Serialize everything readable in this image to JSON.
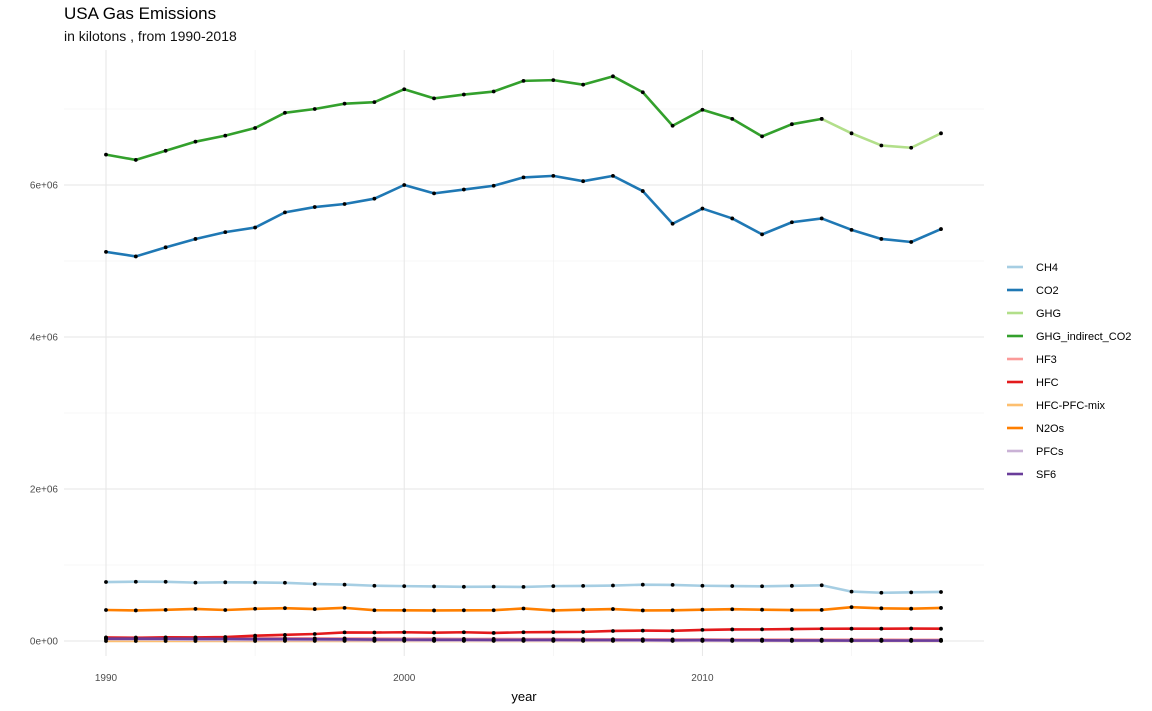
{
  "chart_data": {
    "type": "line",
    "title": "USA Gas Emissions",
    "subtitle": "in kilotons , from 1990-2018",
    "xlabel": "year",
    "ylabel": "",
    "xlim": [
      1990,
      2018
    ],
    "ylim": [
      0,
      7500000
    ],
    "x_ticks": [
      {
        "value": 1990,
        "label": "1990"
      },
      {
        "value": 2000,
        "label": "2000"
      },
      {
        "value": 2010,
        "label": "2010"
      }
    ],
    "y_ticks": [
      {
        "value": 0,
        "label": "0e+00"
      },
      {
        "value": 2000000,
        "label": "2e+06"
      },
      {
        "value": 4000000,
        "label": "4e+06"
      },
      {
        "value": 6000000,
        "label": "6e+06"
      }
    ],
    "grid": true,
    "legend_position": "right",
    "point_color": "#000000",
    "series": [
      {
        "name": "CH4",
        "color": "#a6cee3",
        "x": [
          1990,
          1991,
          1992,
          1993,
          1994,
          1995,
          1996,
          1997,
          1998,
          1999,
          2000,
          2001,
          2002,
          2003,
          2004,
          2005,
          2006,
          2007,
          2008,
          2009,
          2010,
          2011,
          2012,
          2013,
          2014,
          2015,
          2016,
          2017,
          2018
        ],
        "values": [
          776000,
          780000,
          779000,
          768000,
          772000,
          770000,
          766000,
          750000,
          742000,
          727000,
          722000,
          718000,
          713000,
          715000,
          712000,
          722000,
          725000,
          730000,
          741000,
          738000,
          727000,
          723000,
          720000,
          726000,
          733000,
          650000,
          635000,
          640000,
          645000
        ]
      },
      {
        "name": "CO2",
        "color": "#1f78b4",
        "x": [
          1990,
          1991,
          1992,
          1993,
          1994,
          1995,
          1996,
          1997,
          1998,
          1999,
          2000,
          2001,
          2002,
          2003,
          2004,
          2005,
          2006,
          2007,
          2008,
          2009,
          2010,
          2011,
          2012,
          2013,
          2014,
          2015,
          2016,
          2017,
          2018
        ],
        "values": [
          5120000,
          5060000,
          5180000,
          5290000,
          5380000,
          5440000,
          5640000,
          5710000,
          5750000,
          5820000,
          6000000,
          5890000,
          5940000,
          5990000,
          6100000,
          6120000,
          6050000,
          6120000,
          5920000,
          5490000,
          5690000,
          5560000,
          5350000,
          5510000,
          5560000,
          5410000,
          5290000,
          5250000,
          5420000
        ]
      },
      {
        "name": "GHG",
        "color": "#b2df8a",
        "x": [
          2014,
          2015,
          2016,
          2017,
          2018
        ],
        "values": [
          6870000,
          6680000,
          6520000,
          6490000,
          6680000
        ]
      },
      {
        "name": "GHG_indirect_CO2",
        "color": "#33a02c",
        "x": [
          1990,
          1991,
          1992,
          1993,
          1994,
          1995,
          1996,
          1997,
          1998,
          1999,
          2000,
          2001,
          2002,
          2003,
          2004,
          2005,
          2006,
          2007,
          2008,
          2009,
          2010,
          2011,
          2012,
          2013,
          2014
        ],
        "values": [
          6400000,
          6330000,
          6450000,
          6570000,
          6650000,
          6750000,
          6950000,
          7000000,
          7070000,
          7090000,
          7260000,
          7140000,
          7190000,
          7230000,
          7370000,
          7380000,
          7320000,
          7430000,
          7220000,
          6780000,
          6990000,
          6870000,
          6640000,
          6800000,
          6870000
        ]
      },
      {
        "name": "HF3",
        "color": "#fb9a99",
        "x": [
          1990,
          1991,
          1992,
          1993,
          1994,
          1995,
          1996,
          1997,
          1998,
          1999,
          2000,
          2001,
          2002,
          2003,
          2004,
          2005,
          2006,
          2007,
          2008,
          2009,
          2010,
          2011,
          2012,
          2013,
          2014,
          2015,
          2016,
          2017,
          2018
        ],
        "values": [
          46000,
          45000,
          43000,
          42000,
          40000,
          38000,
          37000,
          35000,
          34000,
          33000,
          31000,
          30000,
          28000,
          27000,
          26000,
          25000,
          24000,
          23000,
          22000,
          21000,
          20000,
          19500,
          19000,
          18500,
          18000,
          17500,
          17000,
          16500,
          16000
        ]
      },
      {
        "name": "HFC",
        "color": "#e31a1c",
        "x": [
          1990,
          1991,
          1992,
          1993,
          1994,
          1995,
          1996,
          1997,
          1998,
          1999,
          2000,
          2001,
          2002,
          2003,
          2004,
          2005,
          2006,
          2007,
          2008,
          2009,
          2010,
          2011,
          2012,
          2013,
          2014,
          2015,
          2016,
          2017,
          2018
        ],
        "values": [
          46000,
          40000,
          48000,
          47000,
          52000,
          70000,
          81000,
          92000,
          113000,
          111000,
          115000,
          110000,
          115000,
          106000,
          115000,
          117000,
          120000,
          132000,
          137000,
          134000,
          146000,
          152000,
          153000,
          157000,
          161000,
          162000,
          162000,
          164000,
          162000
        ]
      },
      {
        "name": "HFC-PFC-mix",
        "color": "#fdbf6f",
        "x": [
          1990,
          1991,
          1992,
          1993,
          1994,
          1995,
          1996,
          1997,
          1998,
          1999,
          2000,
          2001,
          2002,
          2003,
          2004,
          2005,
          2006,
          2007,
          2008,
          2009,
          2010,
          2011,
          2012,
          2013,
          2014,
          2015,
          2016,
          2017,
          2018
        ],
        "values": [
          0,
          0,
          0,
          0,
          0,
          0,
          1000,
          1000,
          1000,
          1000,
          1000,
          1000,
          1000,
          1000,
          1000,
          1000,
          1000,
          1000,
          1000,
          1000,
          1000,
          1000,
          1000,
          1000,
          1000,
          1000,
          1000,
          1000,
          1000
        ]
      },
      {
        "name": "N2Os",
        "color": "#ff7f00",
        "x": [
          1990,
          1991,
          1992,
          1993,
          1994,
          1995,
          1996,
          1997,
          1998,
          1999,
          2000,
          2001,
          2002,
          2003,
          2004,
          2005,
          2006,
          2007,
          2008,
          2009,
          2010,
          2011,
          2012,
          2013,
          2014,
          2015,
          2016,
          2017,
          2018
        ],
        "values": [
          408000,
          402000,
          410000,
          422000,
          408000,
          424000,
          432000,
          420000,
          436000,
          405000,
          404000,
          402000,
          404000,
          405000,
          428000,
          402000,
          412000,
          420000,
          402000,
          404000,
          412000,
          418000,
          412000,
          407000,
          409000,
          445000,
          430000,
          425000,
          435000
        ]
      },
      {
        "name": "PFCs",
        "color": "#cab2d6",
        "x": [
          1990,
          1991,
          1992,
          1993,
          1994,
          1995,
          1996,
          1997,
          1998,
          1999,
          2000,
          2001,
          2002,
          2003,
          2004,
          2005,
          2006,
          2007,
          2008,
          2009,
          2010,
          2011,
          2012,
          2013,
          2014,
          2015,
          2016,
          2017,
          2018
        ],
        "values": [
          24000,
          22000,
          19000,
          15000,
          14000,
          12000,
          12000,
          12000,
          10000,
          9000,
          8000,
          6000,
          6000,
          5000,
          5000,
          5000,
          5000,
          5000,
          4000,
          3000,
          3000,
          3000,
          3000,
          3000,
          3000,
          3000,
          3000,
          3000,
          3000
        ]
      },
      {
        "name": "SF6",
        "color": "#6a3d9a",
        "x": [
          1990,
          1991,
          1992,
          1993,
          1994,
          1995,
          1996,
          1997,
          1998,
          1999,
          2000,
          2001,
          2002,
          2003,
          2004,
          2005,
          2006,
          2007,
          2008,
          2009,
          2010,
          2011,
          2012,
          2013,
          2014,
          2015,
          2016,
          2017,
          2018
        ],
        "values": [
          31000,
          31000,
          30000,
          29000,
          28000,
          25000,
          25000,
          24000,
          22000,
          19000,
          18000,
          17000,
          17000,
          16000,
          16000,
          16000,
          14000,
          14000,
          13000,
          11000,
          12000,
          10000,
          9000,
          8000,
          7000,
          6000,
          6000,
          6000,
          6000
        ]
      }
    ]
  }
}
